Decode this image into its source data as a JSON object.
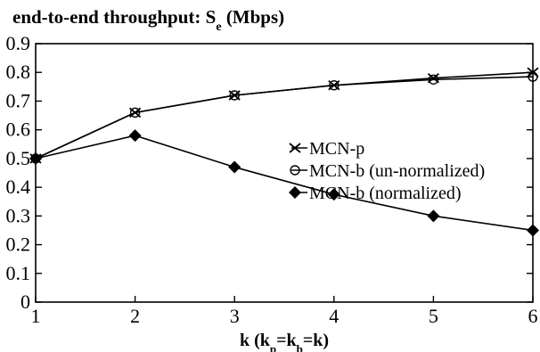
{
  "chart_data": {
    "type": "line",
    "title": "end-to-end throughput: S_e (Mbps)",
    "xlabel": "k (k_p=k_b=k)",
    "ylabel": "",
    "x": [
      1,
      2,
      3,
      4,
      5,
      6
    ],
    "xlim": [
      1,
      6
    ],
    "ylim": [
      0,
      0.9
    ],
    "yticks": [
      0,
      0.1,
      0.2,
      0.3,
      0.4,
      0.5,
      0.6,
      0.7,
      0.8,
      0.9
    ],
    "ytick_labels": [
      "0",
      "0.1",
      "0.2",
      "0.3",
      "0.4",
      "0.5",
      "0.6",
      "0.7",
      "0.8",
      "0.9"
    ],
    "xticks": [
      1,
      2,
      3,
      4,
      5,
      6
    ],
    "xtick_labels": [
      "1",
      "2",
      "3",
      "4",
      "5",
      "6"
    ],
    "grid": false,
    "legend_position": "middle-right",
    "series": [
      {
        "name": "MCN-p",
        "marker": "x",
        "color": "#000000",
        "values": [
          0.5,
          0.66,
          0.72,
          0.755,
          0.78,
          0.8
        ]
      },
      {
        "name": "MCN-b (un-normalized)",
        "marker": "circle-open",
        "color": "#000000",
        "values": [
          0.5,
          0.66,
          0.72,
          0.755,
          0.775,
          0.785
        ]
      },
      {
        "name": "MCN-b (normalized)",
        "marker": "diamond-filled",
        "color": "#000000",
        "values": [
          0.5,
          0.58,
          0.47,
          0.375,
          0.3,
          0.25
        ]
      }
    ]
  }
}
